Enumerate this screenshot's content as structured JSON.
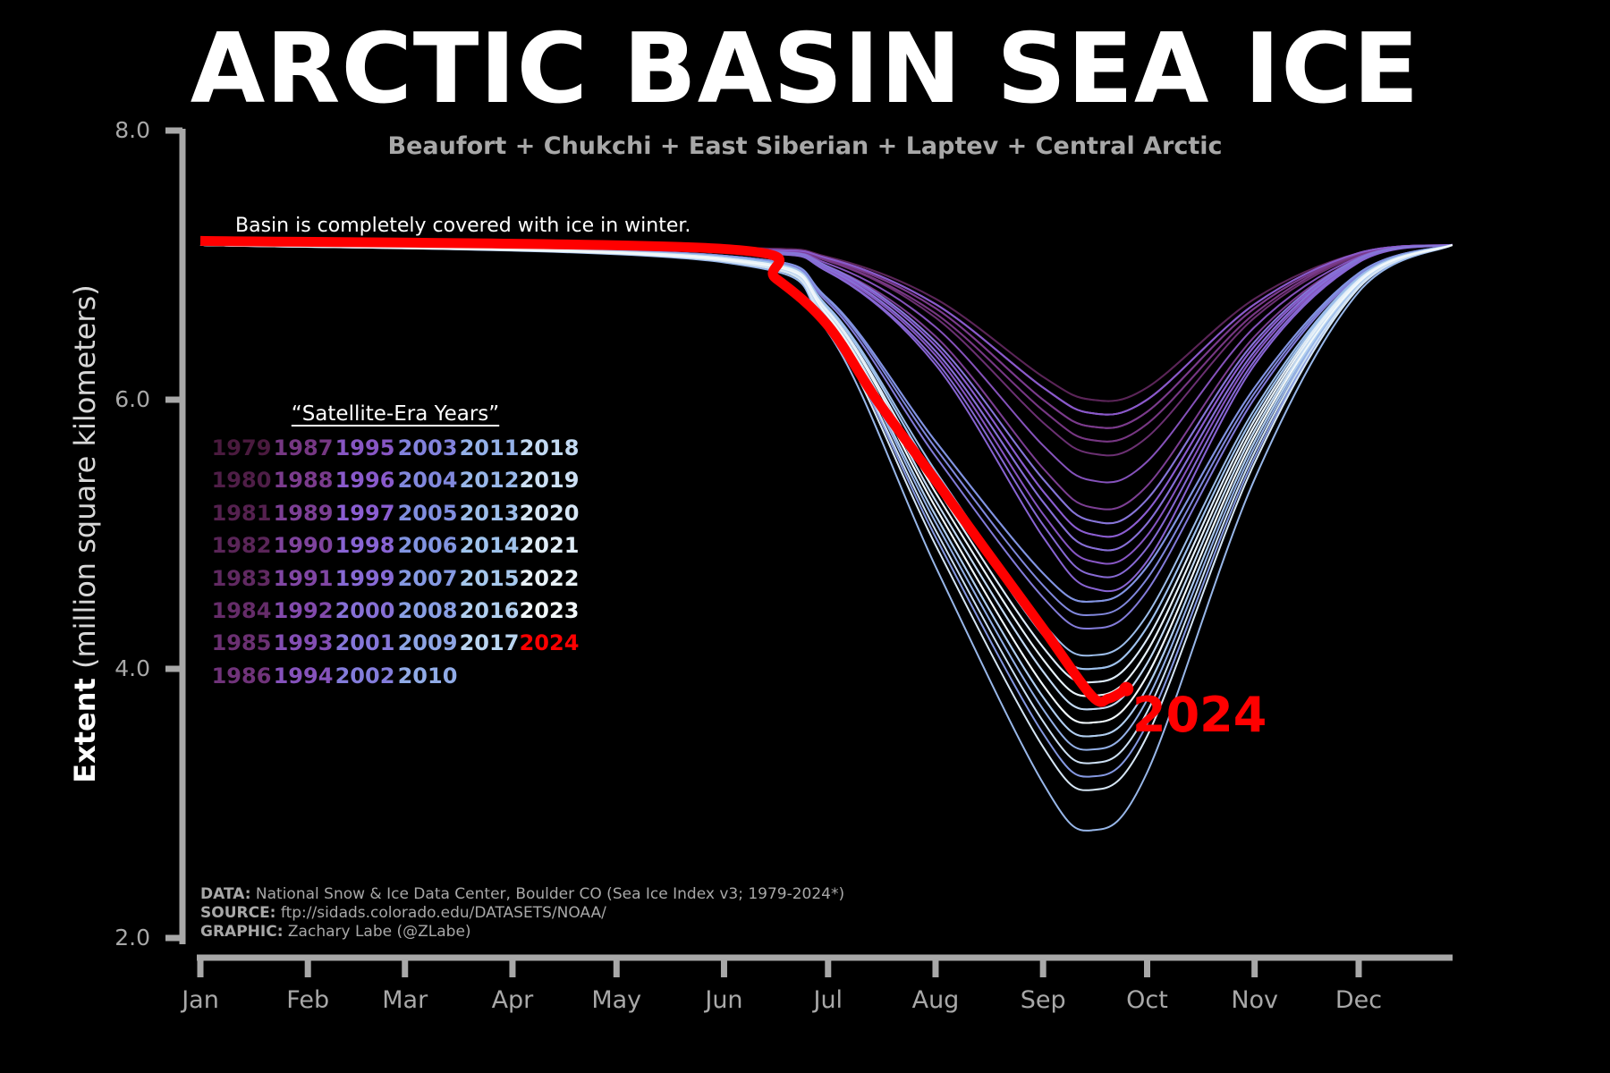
{
  "title": "ARCTIC BASIN SEA ICE",
  "subtitle": "Beaufort + Chukchi + East Siberian + Laptev + Central Arctic",
  "annotation": "Basin is completely covered with ice in winter.",
  "highlight_label": "2024",
  "footer": {
    "data_key": "DATA:",
    "data_val": "National Snow & Ice Data Center, Boulder CO (Sea Ice Index v3; 1979-2024*)",
    "source_key": "SOURCE:",
    "source_val": "ftp://sidads.colorado.edu/DATASETS/NOAA/",
    "graphic_key": "GRAPHIC:",
    "graphic_val": "Zachary Labe (@ZLabe)"
  },
  "chart_data": {
    "type": "line",
    "title": "ARCTIC BASIN SEA ICE",
    "ylabel_bold": "Extent",
    "ylabel_rest": "(million square kilometers)",
    "xlabel": "",
    "ylim": [
      2.0,
      8.0
    ],
    "yticks": [
      "2.0",
      "4.0",
      "6.0",
      "8.0"
    ],
    "ytick_values": [
      2,
      4,
      6,
      8
    ],
    "xticks": [
      "Jan",
      "Feb",
      "Mar",
      "Apr",
      "May",
      "Jun",
      "Jul",
      "Aug",
      "Sep",
      "Oct",
      "Nov",
      "Dec"
    ],
    "xtick_days": [
      1,
      32,
      60,
      91,
      121,
      152,
      182,
      213,
      244,
      274,
      305,
      335
    ],
    "grid": false,
    "legend_title": "“Satellite-Era Years”",
    "legend_placement": "center-left",
    "colors": {
      "background": "#000000",
      "highlight": "#ff0000",
      "axis": "#a8a8a8",
      "colormap": [
        "#4a1a3e",
        "#7a3a8a",
        "#8a5cd0",
        "#7f90e0",
        "#a0c4ec",
        "#f2f8fa"
      ]
    },
    "x_days": [
      1,
      152,
      182,
      213,
      244,
      258,
      274,
      305,
      335,
      362
    ],
    "series": [
      {
        "name": "1979",
        "values": [
          7.15,
          7.13,
          7.06,
          6.75,
          6.17,
          6.0,
          6.09,
          6.75,
          7.09,
          7.15
        ]
      },
      {
        "name": "1980",
        "values": [
          7.15,
          7.12,
          7.05,
          6.71,
          6.09,
          5.9,
          6.0,
          6.71,
          7.09,
          7.15
        ]
      },
      {
        "name": "1981",
        "values": [
          7.15,
          7.12,
          7.03,
          6.64,
          5.92,
          5.7,
          5.82,
          6.64,
          7.08,
          7.15
        ]
      },
      {
        "name": "1982",
        "values": [
          7.15,
          7.13,
          7.06,
          6.75,
          6.17,
          6.0,
          6.09,
          6.75,
          7.09,
          7.15
        ]
      },
      {
        "name": "1983",
        "values": [
          7.15,
          7.12,
          7.04,
          6.68,
          6.0,
          5.8,
          5.91,
          6.68,
          7.08,
          7.15
        ]
      },
      {
        "name": "1984",
        "values": [
          7.15,
          7.12,
          7.04,
          6.68,
          6.0,
          5.8,
          5.91,
          6.68,
          7.08,
          7.15
        ]
      },
      {
        "name": "1985",
        "values": [
          7.15,
          7.12,
          7.03,
          6.61,
          5.83,
          5.6,
          5.72,
          6.61,
          7.07,
          7.15
        ]
      },
      {
        "name": "1986",
        "values": [
          7.15,
          7.12,
          7.05,
          6.71,
          6.09,
          5.9,
          6.0,
          6.71,
          7.09,
          7.15
        ]
      },
      {
        "name": "1987",
        "values": [
          7.15,
          7.12,
          7.03,
          6.64,
          5.92,
          5.7,
          5.82,
          6.64,
          7.08,
          7.15
        ]
      },
      {
        "name": "1988",
        "values": [
          7.15,
          7.12,
          7.04,
          6.68,
          6.0,
          5.8,
          5.91,
          6.68,
          7.08,
          7.15
        ]
      },
      {
        "name": "1989",
        "values": [
          7.15,
          7.11,
          6.99,
          6.47,
          5.49,
          5.2,
          5.36,
          6.47,
          7.05,
          7.15
        ]
      },
      {
        "name": "1990",
        "values": [
          7.15,
          7.11,
          6.98,
          6.4,
          5.32,
          5.0,
          5.17,
          6.4,
          7.04,
          7.15
        ]
      },
      {
        "name": "1991",
        "values": [
          7.15,
          7.11,
          6.99,
          6.43,
          5.41,
          5.1,
          5.26,
          6.43,
          7.05,
          7.15
        ]
      },
      {
        "name": "1992",
        "values": [
          7.15,
          7.12,
          7.05,
          6.71,
          6.09,
          5.9,
          6.0,
          6.71,
          7.09,
          7.15
        ]
      },
      {
        "name": "1993",
        "values": [
          7.15,
          7.1,
          6.97,
          6.36,
          5.24,
          4.9,
          5.08,
          6.36,
          7.04,
          7.15
        ]
      },
      {
        "name": "1994",
        "values": [
          7.15,
          7.11,
          7.01,
          6.54,
          5.66,
          5.4,
          5.54,
          6.54,
          7.06,
          7.15
        ]
      },
      {
        "name": "1995",
        "values": [
          7.15,
          7.1,
          6.96,
          6.33,
          5.15,
          4.8,
          4.99,
          6.33,
          7.03,
          7.15
        ]
      },
      {
        "name": "1996",
        "values": [
          7.15,
          7.12,
          7.05,
          6.71,
          6.09,
          5.9,
          6.0,
          6.71,
          7.09,
          7.15
        ]
      },
      {
        "name": "1997",
        "values": [
          7.15,
          7.11,
          6.98,
          6.4,
          5.32,
          5.0,
          5.17,
          6.4,
          7.04,
          7.15
        ]
      },
      {
        "name": "1998",
        "values": [
          7.15,
          7.1,
          6.95,
          6.26,
          4.98,
          4.6,
          4.8,
          6.26,
          7.02,
          7.15
        ]
      },
      {
        "name": "1999",
        "values": [
          7.15,
          7.1,
          6.95,
          6.29,
          5.07,
          4.7,
          4.9,
          6.29,
          7.03,
          7.15
        ]
      },
      {
        "name": "2000",
        "values": [
          7.15,
          7.1,
          6.97,
          6.36,
          5.24,
          4.9,
          5.08,
          6.36,
          7.04,
          7.15
        ]
      },
      {
        "name": "2001",
        "values": [
          7.15,
          7.11,
          6.99,
          6.43,
          5.41,
          5.1,
          5.26,
          6.43,
          7.05,
          7.15
        ]
      },
      {
        "name": "2002",
        "values": [
          7.15,
          7.06,
          6.72,
          5.58,
          4.53,
          4.3,
          4.58,
          6.01,
          6.92,
          7.15
        ]
      },
      {
        "name": "2003",
        "values": [
          7.15,
          7.07,
          6.75,
          5.69,
          4.71,
          4.5,
          4.76,
          6.09,
          6.94,
          7.15
        ]
      },
      {
        "name": "2004",
        "values": [
          7.15,
          7.07,
          6.74,
          5.64,
          4.62,
          4.4,
          4.67,
          6.05,
          6.93,
          7.15
        ]
      },
      {
        "name": "2005",
        "values": [
          7.15,
          7.06,
          6.68,
          5.42,
          4.25,
          4.0,
          4.31,
          5.89,
          6.9,
          7.15
        ]
      },
      {
        "name": "2006",
        "values": [
          7.15,
          7.07,
          6.75,
          5.69,
          4.71,
          4.5,
          4.76,
          6.09,
          6.94,
          7.15
        ]
      },
      {
        "name": "2007",
        "values": [
          7.15,
          7.03,
          6.56,
          4.98,
          3.52,
          3.2,
          3.59,
          5.57,
          6.83,
          7.15
        ]
      },
      {
        "name": "2008",
        "values": [
          7.15,
          7.04,
          6.6,
          5.14,
          3.79,
          3.5,
          3.86,
          5.69,
          6.86,
          7.15
        ]
      },
      {
        "name": "2009",
        "values": [
          7.15,
          7.05,
          6.66,
          5.36,
          4.16,
          3.9,
          4.22,
          5.85,
          6.89,
          7.15
        ]
      },
      {
        "name": "2010",
        "values": [
          7.15,
          7.05,
          6.63,
          5.25,
          3.98,
          3.7,
          4.04,
          5.77,
          6.87,
          7.15
        ]
      },
      {
        "name": "2011",
        "values": [
          7.15,
          7.04,
          6.59,
          5.09,
          3.7,
          3.4,
          3.77,
          5.65,
          6.85,
          7.15
        ]
      },
      {
        "name": "2012",
        "values": [
          7.15,
          7.02,
          6.5,
          4.76,
          3.15,
          2.8,
          3.23,
          5.41,
          6.8,
          7.15
        ]
      },
      {
        "name": "2013",
        "values": [
          7.15,
          7.06,
          6.69,
          5.47,
          4.34,
          4.1,
          4.4,
          5.93,
          6.91,
          7.15
        ]
      },
      {
        "name": "2014",
        "values": [
          7.15,
          7.06,
          6.68,
          5.42,
          4.25,
          4.0,
          4.31,
          5.89,
          6.9,
          7.15
        ]
      },
      {
        "name": "2015",
        "values": [
          7.15,
          7.04,
          6.62,
          5.2,
          3.88,
          3.6,
          3.95,
          5.73,
          6.87,
          7.15
        ]
      },
      {
        "name": "2016",
        "values": [
          7.15,
          7.04,
          6.6,
          5.14,
          3.79,
          3.5,
          3.86,
          5.69,
          6.86,
          7.15
        ]
      },
      {
        "name": "2017",
        "values": [
          7.15,
          7.05,
          6.65,
          5.31,
          4.07,
          3.8,
          4.13,
          5.81,
          6.88,
          7.15
        ]
      },
      {
        "name": "2018",
        "values": [
          7.15,
          7.05,
          6.63,
          5.25,
          3.98,
          3.7,
          4.04,
          5.77,
          6.87,
          7.15
        ]
      },
      {
        "name": "2019",
        "values": [
          7.15,
          7.03,
          6.57,
          5.03,
          3.61,
          3.3,
          3.68,
          5.61,
          6.84,
          7.15
        ]
      },
      {
        "name": "2020",
        "values": [
          7.15,
          7.03,
          6.54,
          4.92,
          3.42,
          3.1,
          3.5,
          5.53,
          6.83,
          7.15
        ]
      },
      {
        "name": "2021",
        "values": [
          7.15,
          7.05,
          6.66,
          5.36,
          4.16,
          3.9,
          4.22,
          5.85,
          6.89,
          7.15
        ]
      },
      {
        "name": "2022",
        "values": [
          7.15,
          7.05,
          6.65,
          5.31,
          4.07,
          3.8,
          4.13,
          5.81,
          6.88,
          7.15
        ]
      },
      {
        "name": "2023",
        "values": [
          7.15,
          7.04,
          6.62,
          5.2,
          3.88,
          3.6,
          3.95,
          5.73,
          6.87,
          7.15
        ]
      }
    ],
    "highlight_series": {
      "name": "2024",
      "x_days": [
        1,
        152,
        167,
        182,
        196,
        213,
        227,
        244,
        258,
        263,
        268
      ],
      "values": [
        7.18,
        7.12,
        6.9,
        6.55,
        6.0,
        5.4,
        4.9,
        4.3,
        3.8,
        3.78,
        3.85
      ]
    }
  }
}
